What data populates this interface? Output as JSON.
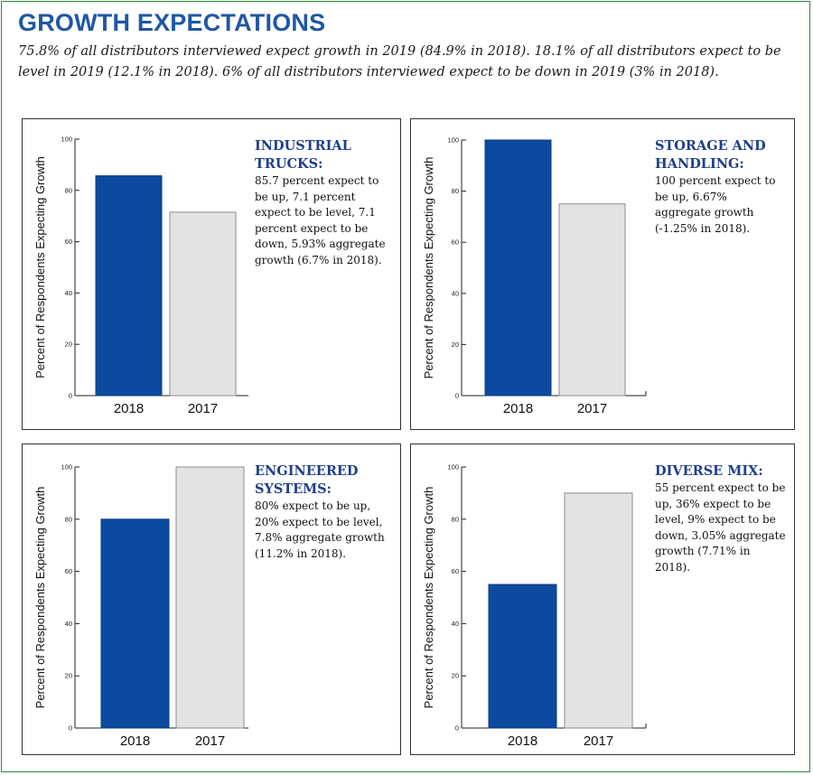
{
  "header": {
    "title": "GROWTH EXPECTATIONS",
    "intro": "75.8% of all distributors interviewed expect growth in 2019 (84.9% in 2018). 18.1% of all distributors expect to be level in 2019 (12.1% in 2018). 6% of all distributors interviewed expect to be down in 2019 (3% in 2018)."
  },
  "colors": {
    "title": "#1f57a4",
    "bar_2018": "#0b4a9e",
    "bar_2017": "#e3e3e3"
  },
  "panels": [
    {
      "heading": "INDUSTRIAL TRUCKS:",
      "body": "85.7 percent expect to be up, 7.1 percent expect to be level, 7.1 percent expect to be down, 5.93% aggregate growth (6.7% in 2018)."
    },
    {
      "heading": "STORAGE AND HANDLING:",
      "body": "100 percent expect to be up, 6.67% aggregate growth (-1.25% in 2018)."
    },
    {
      "heading": "ENGINEERED SYSTEMS:",
      "body": "80% expect to be up, 20% expect to be level, 7.8% aggregate growth (11.2% in 2018)."
    },
    {
      "heading": "DIVERSE MIX:",
      "body": "55 percent expect to be up, 36% expect to be level, 9% expect to be down, 3.05% aggregate growth (7.71% in 2018)."
    }
  ],
  "chart_data": [
    {
      "type": "bar",
      "title": "Industrial Trucks",
      "categories": [
        "2018",
        "2017"
      ],
      "values": [
        85.7,
        71.5
      ],
      "ylabel": "Percent of Respondents Expecting Growth",
      "xlabel": "",
      "ylim": [
        0,
        100
      ],
      "yticks": [
        0,
        20,
        40,
        60,
        80,
        100
      ],
      "grid": false
    },
    {
      "type": "bar",
      "title": "Storage and Handling",
      "categories": [
        "2018",
        "2017"
      ],
      "values": [
        100,
        75
      ],
      "ylabel": "Percent of Respondents Expecting Growth",
      "xlabel": "",
      "ylim": [
        0,
        100
      ],
      "yticks": [
        0,
        20,
        40,
        60,
        80,
        100
      ],
      "grid": false
    },
    {
      "type": "bar",
      "title": "Engineered Systems",
      "categories": [
        "2018",
        "2017"
      ],
      "values": [
        80,
        100
      ],
      "ylabel": "Percent of Respondents Expecting Growth",
      "xlabel": "",
      "ylim": [
        0,
        100
      ],
      "yticks": [
        0,
        20,
        40,
        60,
        80,
        100
      ],
      "grid": false
    },
    {
      "type": "bar",
      "title": "Diverse Mix",
      "categories": [
        "2018",
        "2017"
      ],
      "values": [
        55,
        90
      ],
      "ylabel": "Percent of Respondents Expecting Growth",
      "xlabel": "",
      "ylim": [
        0,
        100
      ],
      "yticks": [
        0,
        20,
        40,
        60,
        80,
        100
      ],
      "grid": false
    }
  ]
}
